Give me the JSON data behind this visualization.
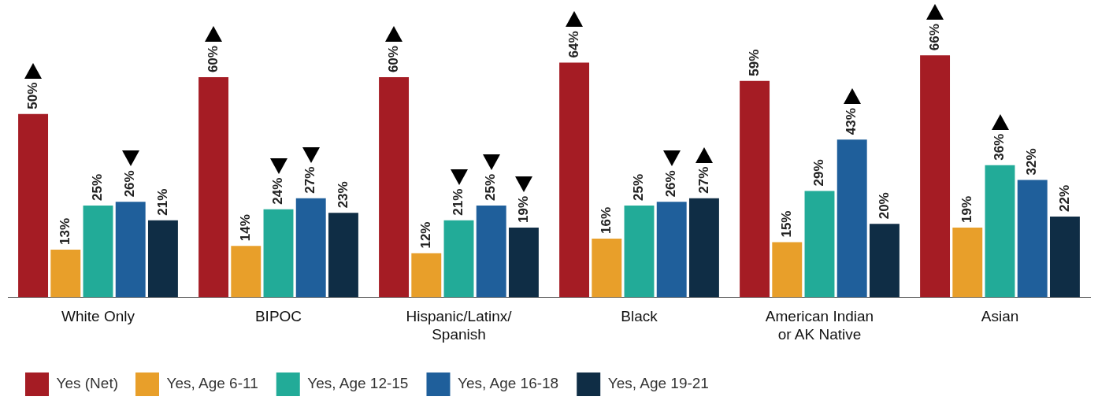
{
  "chart_data": {
    "type": "bar",
    "categories": [
      "White Only",
      "BIPOC",
      "Hispanic/Latinx/\nSpanish",
      "Black",
      "American Indian\nor AK Native",
      "Asian"
    ],
    "series": [
      {
        "name": "Yes (Net)",
        "color": "#a51c24",
        "values": [
          50,
          60,
          60,
          64,
          59,
          66
        ],
        "value_labels": [
          "50%",
          "60%",
          "60%",
          "64%",
          "59%",
          "66%"
        ]
      },
      {
        "name": "Yes, Age 6-11",
        "color": "#e89f2a",
        "values": [
          13,
          14,
          12,
          16,
          15,
          19
        ],
        "value_labels": [
          "13%",
          "14%",
          "12%",
          "16%",
          "15%",
          "19%"
        ]
      },
      {
        "name": "Yes, Age 12-15",
        "color": "#22ab98",
        "values": [
          25,
          24,
          21,
          25,
          29,
          36
        ],
        "value_labels": [
          "25%",
          "24%",
          "21%",
          "25%",
          "29%",
          "36%"
        ]
      },
      {
        "name": "Yes, Age 16-18",
        "color": "#1f5f9b",
        "values": [
          26,
          27,
          25,
          26,
          43,
          32
        ],
        "value_labels": [
          "26%",
          "27%",
          "25%",
          "26%",
          "43%",
          "32%"
        ]
      },
      {
        "name": "Yes, Age 19-21",
        "color": "#0f2d45",
        "values": [
          21,
          23,
          19,
          27,
          20,
          22
        ],
        "value_labels": [
          "21%",
          "23%",
          "19%",
          "27%",
          "20%",
          "22%"
        ]
      }
    ],
    "grid": false,
    "legend": "bottom left"
  }
}
